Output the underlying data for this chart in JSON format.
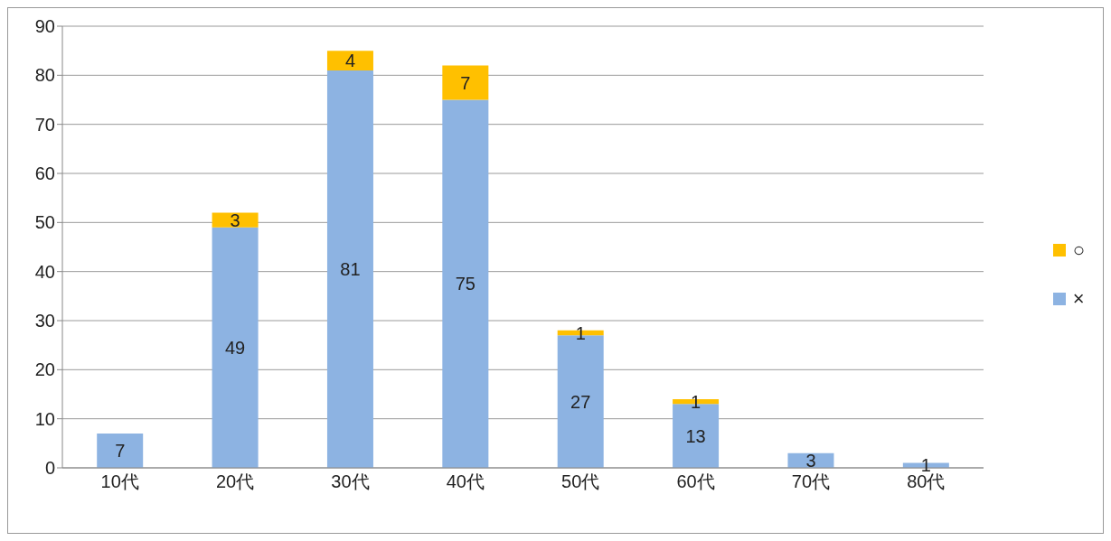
{
  "chart_data": {
    "type": "bar",
    "stacked": true,
    "categories": [
      "10代",
      "20代",
      "30代",
      "40代",
      "50代",
      "60代",
      "70代",
      "80代"
    ],
    "series": [
      {
        "name": "×",
        "color": "#8db3e2",
        "values": [
          7,
          49,
          81,
          75,
          27,
          13,
          3,
          1
        ]
      },
      {
        "name": "○",
        "color": "#ffc000",
        "values": [
          null,
          3,
          4,
          7,
          1,
          1,
          null,
          null
        ]
      }
    ],
    "ylim": [
      0,
      90
    ],
    "yticks": [
      0,
      10,
      20,
      30,
      40,
      50,
      60,
      70,
      80,
      90
    ],
    "grid": "y",
    "legend": "right",
    "data_labels": true
  }
}
